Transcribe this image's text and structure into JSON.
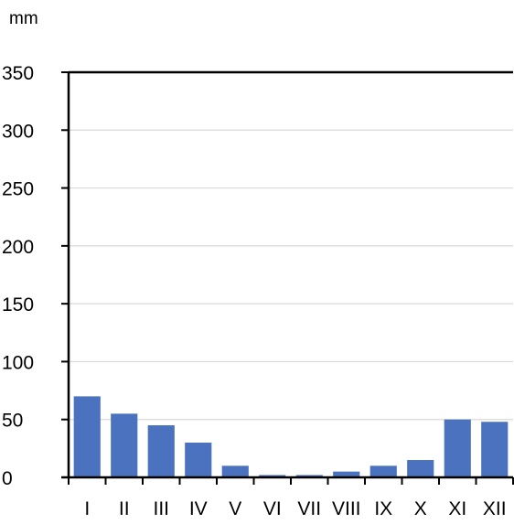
{
  "chart_data": {
    "type": "bar",
    "ylabel": "mm",
    "categories": [
      "I",
      "II",
      "III",
      "IV",
      "V",
      "VI",
      "VII",
      "VIII",
      "IX",
      "X",
      "XI",
      "XII"
    ],
    "values": [
      70,
      55,
      45,
      30,
      10,
      2,
      2,
      5,
      10,
      15,
      50,
      48
    ],
    "ylim": [
      0,
      350
    ],
    "yticks": [
      0,
      50,
      100,
      150,
      200,
      250,
      300,
      350
    ],
    "grid": true,
    "legend": "none",
    "colors": {
      "bar": "#4a72bf",
      "grid": "#d9d9d9",
      "axis": "#000000"
    }
  }
}
